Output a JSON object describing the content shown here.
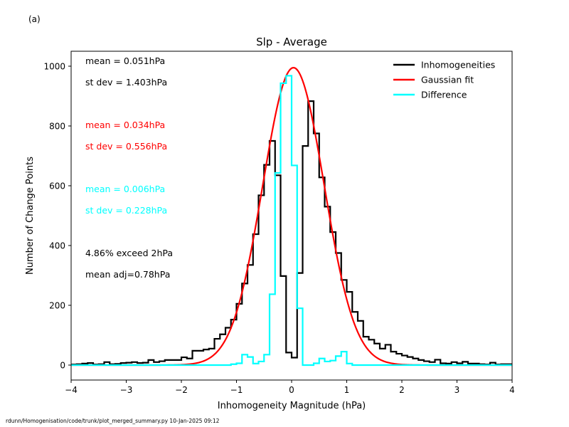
{
  "panel_label": "(a)",
  "footer_text": "rdunn/Homogenisation/code/trunk/plot_merged_summary.py   10-Jan-2025 09:12",
  "chart_data": {
    "type": "line",
    "title": "Slp - Average",
    "xlabel": "Inhomogeneity Magnitude (hPa)",
    "ylabel": "Number of Change Points",
    "xlim": [
      -4,
      4
    ],
    "ylim": [
      -50,
      1050
    ],
    "xticks": [
      -4,
      -3,
      -2,
      -1,
      0,
      1,
      2,
      3,
      4
    ],
    "xtick_labels": [
      "−4",
      "−3",
      "−2",
      "−1",
      "0",
      "1",
      "2",
      "3",
      "4"
    ],
    "yticks": [
      0,
      200,
      400,
      600,
      800,
      1000
    ],
    "ytick_labels": [
      "0",
      "200",
      "400",
      "600",
      "800",
      "1000"
    ],
    "grid": false,
    "legend_position": "top-right",
    "bin_width": 0.1,
    "series": [
      {
        "name": "Inhomogeneities",
        "style": "step",
        "color": "#000000",
        "x": [
          -4.0,
          -3.9,
          -3.8,
          -3.7,
          -3.6,
          -3.5,
          -3.4,
          -3.3,
          -3.2,
          -3.1,
          -3.0,
          -2.9,
          -2.8,
          -2.7,
          -2.6,
          -2.5,
          -2.4,
          -2.3,
          -2.2,
          -2.1,
          -2.0,
          -1.9,
          -1.8,
          -1.7,
          -1.6,
          -1.5,
          -1.4,
          -1.3,
          -1.2,
          -1.1,
          -1.0,
          -0.9,
          -0.8,
          -0.7,
          -0.6,
          -0.5,
          -0.4,
          -0.3,
          -0.2,
          -0.1,
          0.0,
          0.1,
          0.2,
          0.3,
          0.4,
          0.5,
          0.6,
          0.7,
          0.8,
          0.9,
          1.0,
          1.1,
          1.2,
          1.3,
          1.4,
          1.5,
          1.6,
          1.7,
          1.8,
          1.9,
          2.0,
          2.1,
          2.2,
          2.3,
          2.4,
          2.5,
          2.6,
          2.7,
          2.8,
          2.9,
          3.0,
          3.1,
          3.2,
          3.3,
          3.4,
          3.5,
          3.6,
          3.7,
          3.8,
          3.9
        ],
        "values": [
          2,
          3,
          5,
          7,
          2,
          3,
          10,
          3,
          4,
          7,
          8,
          10,
          7,
          8,
          17,
          10,
          13,
          17,
          17,
          17,
          26,
          22,
          48,
          48,
          52,
          55,
          88,
          103,
          125,
          152,
          205,
          273,
          335,
          438,
          568,
          670,
          750,
          635,
          298,
          42,
          25,
          308,
          733,
          883,
          775,
          628,
          530,
          445,
          375,
          285,
          245,
          178,
          148,
          95,
          85,
          72,
          55,
          68,
          45,
          38,
          32,
          27,
          22,
          17,
          13,
          10,
          18,
          6,
          5,
          10,
          6,
          11,
          5,
          5,
          3,
          2,
          8,
          2,
          3,
          3
        ]
      },
      {
        "name": "Gaussian fit",
        "style": "line",
        "color": "#ff0000",
        "amplitude": 995,
        "mean": 0.034,
        "stdev": 0.556
      },
      {
        "name": "Difference",
        "style": "step",
        "color": "#00ffff",
        "x": [
          -4.0,
          -3.9,
          -3.8,
          -3.7,
          -3.6,
          -3.5,
          -3.4,
          -3.3,
          -3.2,
          -3.1,
          -3.0,
          -2.9,
          -2.8,
          -2.7,
          -2.6,
          -2.5,
          -2.4,
          -2.3,
          -2.2,
          -2.1,
          -2.0,
          -1.9,
          -1.8,
          -1.7,
          -1.6,
          -1.5,
          -1.4,
          -1.3,
          -1.2,
          -1.1,
          -1.0,
          -0.9,
          -0.8,
          -0.7,
          -0.6,
          -0.5,
          -0.4,
          -0.3,
          -0.2,
          -0.1,
          0.0,
          0.1,
          0.2,
          0.3,
          0.4,
          0.5,
          0.6,
          0.7,
          0.8,
          0.9,
          1.0,
          1.1,
          1.2,
          1.3,
          1.4,
          1.5,
          1.6,
          1.7,
          1.8,
          1.9,
          2.0,
          2.1,
          2.2,
          2.3,
          2.4,
          2.5,
          2.6,
          2.7,
          2.8,
          2.9,
          3.0,
          3.1,
          3.2,
          3.3,
          3.4,
          3.5,
          3.6,
          3.7,
          3.8,
          3.9
        ],
        "values": [
          0,
          0,
          0,
          0,
          0,
          0,
          0,
          0,
          0,
          0,
          0,
          0,
          0,
          0,
          0,
          0,
          0,
          0,
          0,
          0,
          0,
          0,
          0,
          0,
          0,
          0,
          0,
          0,
          0,
          3,
          6,
          35,
          27,
          5,
          12,
          35,
          237,
          643,
          943,
          968,
          668,
          190,
          0,
          0,
          6,
          22,
          12,
          15,
          30,
          45,
          5,
          0,
          0,
          0,
          0,
          0,
          0,
          0,
          0,
          0,
          0,
          0,
          0,
          0,
          0,
          0,
          0,
          0,
          0,
          0,
          0,
          0,
          0,
          0,
          0,
          0,
          0,
          0,
          0,
          0
        ]
      }
    ],
    "annotations": [
      {
        "text": "mean =  0.051hPa",
        "color": "#000000"
      },
      {
        "text": "st dev =  1.403hPa",
        "color": "#000000"
      },
      {
        "text": "mean =  0.034hPa",
        "color": "#ff0000"
      },
      {
        "text": "st dev =  0.556hPa",
        "color": "#ff0000"
      },
      {
        "text": "mean =  0.006hPa",
        "color": "#00ffff"
      },
      {
        "text": "st dev =  0.228hPa",
        "color": "#00ffff"
      },
      {
        "text": "4.86% exceed 2hPa",
        "color": "#000000"
      },
      {
        "text": "mean adj=0.78hPa",
        "color": "#000000"
      }
    ]
  }
}
